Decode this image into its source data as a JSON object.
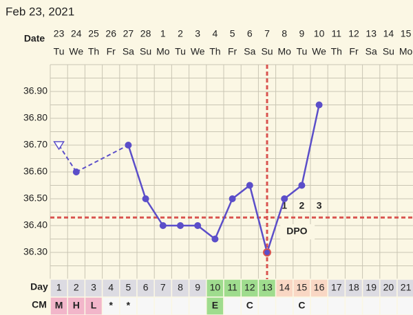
{
  "title": "Feb 23, 2021",
  "chart_data": {
    "type": "line",
    "date_label": "Date",
    "dates": [
      "23",
      "24",
      "25",
      "26",
      "27",
      "28",
      "1",
      "2",
      "3",
      "4",
      "5",
      "6",
      "7",
      "8",
      "9",
      "10",
      "11",
      "12",
      "13",
      "14",
      "15"
    ],
    "weekdays": [
      "Tu",
      "We",
      "Th",
      "Fr",
      "Sa",
      "Su",
      "Mo",
      "Tu",
      "We",
      "Th",
      "Fr",
      "Sa",
      "Su",
      "Mo",
      "Tu",
      "We",
      "Th",
      "Fr",
      "Sa",
      "Su",
      "Mo"
    ],
    "day_label": "Day",
    "days": [
      1,
      2,
      3,
      4,
      5,
      6,
      7,
      8,
      9,
      10,
      11,
      12,
      13,
      14,
      15,
      16,
      17,
      18,
      19,
      20,
      21
    ],
    "day_colors": [
      "#dcdbe2",
      "#dcdbe2",
      "#dcdbe2",
      "#dcdbe2",
      "#dcdbe2",
      "#dcdbe2",
      "#dcdbe2",
      "#dcdbe2",
      "#dcdbe2",
      "#9fdc8e",
      "#9fdc8e",
      "#9fdc8e",
      "#9fdc8e",
      "#f9d7c4",
      "#f9d7c4",
      "#f9d7c4",
      "#dcdbe2",
      "#dcdbe2",
      "#dcdbe2",
      "#dcdbe2",
      "#dcdbe2"
    ],
    "cm_label": "CM",
    "cm": [
      "M",
      "H",
      "L",
      "*",
      "*",
      null,
      null,
      null,
      null,
      "E",
      null,
      "C",
      null,
      null,
      "C",
      null,
      null,
      null,
      null,
      null,
      null
    ],
    "cm_colors": [
      "#f2b6ca",
      "#f2b6ca",
      "#f2b6ca",
      "#f7f7f7",
      "#f7f7f7",
      "#f7f7f7",
      "#f7f7f7",
      "#f7f7f7",
      "#f7f7f7",
      "#9fdc8e",
      "#f7f7f7",
      "#f7f7f7",
      "#f7f7f7",
      "#f7f7f7",
      "#f7f7f7",
      "#f7f7f7",
      "#f7f7f7",
      "#f7f7f7",
      "#f7f7f7",
      "#f7f7f7",
      "#f7f7f7"
    ],
    "values": [
      36.7,
      36.6,
      null,
      null,
      36.7,
      36.5,
      36.4,
      36.4,
      36.4,
      36.35,
      36.5,
      36.55,
      36.3,
      36.5,
      36.55,
      36.85,
      null,
      null,
      null,
      null,
      null
    ],
    "point_styles": [
      "open-triangle",
      "dot",
      null,
      null,
      "dot",
      "dot",
      "dot",
      "dot",
      "dot",
      "dot",
      "dot",
      "dot",
      "ringed-dot",
      "dot",
      "dot",
      "dot",
      null,
      null,
      null,
      null,
      null
    ],
    "color": "#5b4ec9",
    "ylim": [
      36.2,
      37.0
    ],
    "yticks": [
      {
        "value": 36.3,
        "label": "36.30"
      },
      {
        "value": 36.4,
        "label": "36.40"
      },
      {
        "value": 36.5,
        "label": "36.50"
      },
      {
        "value": 36.6,
        "label": "36.60"
      },
      {
        "value": 36.7,
        "label": "36.70"
      },
      {
        "value": 36.8,
        "label": "36.80"
      },
      {
        "value": 36.9,
        "label": "36.90"
      }
    ],
    "ygrid": [
      36.25,
      36.3,
      36.35,
      36.4,
      36.45,
      36.5,
      36.55,
      36.6,
      36.65,
      36.7,
      36.75,
      36.8,
      36.85,
      36.9,
      36.95
    ],
    "coverline": 36.43,
    "ovulation_day": 13,
    "marker_color": "#d9534f",
    "dpo_labels": [
      "1",
      "2",
      "3"
    ],
    "dpo_text": "DPO"
  }
}
